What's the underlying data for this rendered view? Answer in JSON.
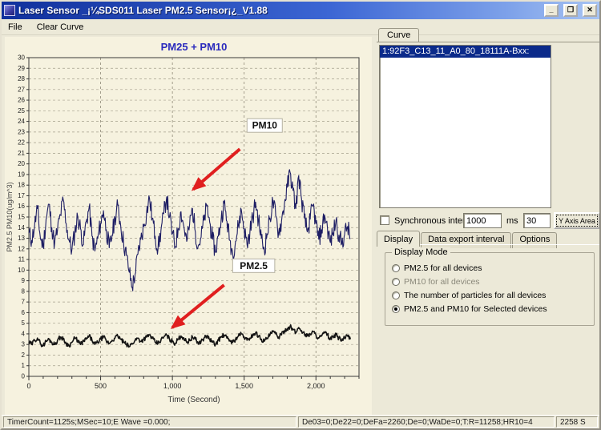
{
  "window": {
    "title": "Laser Sensor _¡¼SDS011 Laser PM2.5 Sensor¡¿_V1.88",
    "minimize_glyph": "_",
    "restore_glyph": "❐",
    "close_glyph": "✕"
  },
  "menu": {
    "items": [
      "File",
      "Clear Curve"
    ]
  },
  "right_panel": {
    "curve_tab_label": "Curve",
    "device_list": [
      "1:92F3_C13_11_A0_80_18111A-Bxx:"
    ],
    "sync": {
      "checkbox_label": "Synchronous interval",
      "interval_value": "1000",
      "unit": "ms",
      "y_axis_value": "30",
      "button_label": "Y Axis Area"
    },
    "tabs": [
      "Display",
      "Data export interval",
      "Options"
    ],
    "display_mode": {
      "title": "Display Mode",
      "options": [
        {
          "label": "PM2.5 for all devices",
          "selected": false,
          "dim": false
        },
        {
          "label": "PM10 for all devices",
          "selected": false,
          "dim": true
        },
        {
          "label": "The number of particles for all devices",
          "selected": false,
          "dim": false
        },
        {
          "label": "PM2.5 and PM10 for Selected devices",
          "selected": true,
          "dim": false
        }
      ]
    }
  },
  "status_bar": {
    "panel1": "TimerCount=1125s;MSec=10;E Wave =0.000;",
    "panel2": "De03=0;De22=0;DeFa=2260;De=0;WaDe=0;T:R=11258;HR10=4",
    "panel3": "2258 S"
  },
  "chart_data": {
    "type": "line",
    "title": "PM25 + PM10",
    "xlabel": "Time (Second)",
    "ylabel": "PM2.5 PM10(ug/m^3)",
    "xlim": [
      0,
      2300
    ],
    "ylim": [
      0,
      30
    ],
    "y_tick_step": 1,
    "grid": true,
    "title_color": "#2b2bbd",
    "xticks": [
      {
        "value": 0,
        "label": "0"
      },
      {
        "value": 500,
        "label": "500"
      },
      {
        "value": 1000,
        "label": "1,000"
      },
      {
        "value": 1500,
        "label": "1,500"
      },
      {
        "value": 2000,
        "label": "2,000"
      }
    ],
    "x": {
      "start": 0,
      "step": 20
    },
    "series": [
      {
        "name": "PM10",
        "color": "#1e1e64",
        "width": 1.1,
        "noise": 0.9,
        "seed": 11,
        "values": [
          13.5,
          12.8,
          14.2,
          15.8,
          13.1,
          12.2,
          14.8,
          16.2,
          14.0,
          12.5,
          13.8,
          15.2,
          16.6,
          14.4,
          12.8,
          11.9,
          13.5,
          15.1,
          13.9,
          12.4,
          14.6,
          15.9,
          13.2,
          11.8,
          13.0,
          14.4,
          15.6,
          13.8,
          12.1,
          13.3,
          14.9,
          16.1,
          14.2,
          12.6,
          11.4,
          9.8,
          8.4,
          9.6,
          11.5,
          12.9,
          14.1,
          15.4,
          16.8,
          14.9,
          13.2,
          12.0,
          13.7,
          15.3,
          16.9,
          15.0,
          13.4,
          12.2,
          13.9,
          15.5,
          14.1,
          12.7,
          14.3,
          15.8,
          13.6,
          12.3,
          13.1,
          14.7,
          16.0,
          14.5,
          12.9,
          11.7,
          13.2,
          14.8,
          16.3,
          14.6,
          12.8,
          11.6,
          12.7,
          14.2,
          15.7,
          13.9,
          12.4,
          13.6,
          15.0,
          16.4,
          14.7,
          13.0,
          11.9,
          13.4,
          14.9,
          16.5,
          15.1,
          13.5,
          14.6,
          16.2,
          17.8,
          19.2,
          17.5,
          15.8,
          18.9,
          16.7,
          14.9,
          13.6,
          14.8,
          16.1,
          14.4,
          12.9,
          13.8,
          15.2,
          14.0,
          12.6,
          13.5,
          14.7,
          13.3,
          12.5,
          13.4,
          14.1,
          13.0
        ]
      },
      {
        "name": "PM2.5",
        "color": "#141414",
        "width": 1.6,
        "noise": 0.22,
        "seed": 29,
        "values": [
          3.2,
          3.0,
          3.4,
          3.6,
          3.1,
          2.9,
          3.3,
          3.5,
          3.2,
          3.0,
          3.4,
          3.7,
          3.5,
          3.1,
          2.9,
          3.2,
          3.6,
          3.4,
          3.0,
          3.3,
          3.5,
          3.8,
          3.4,
          3.0,
          3.2,
          3.5,
          3.7,
          3.3,
          3.1,
          3.4,
          3.6,
          3.8,
          3.5,
          3.2,
          3.0,
          2.8,
          3.1,
          3.4,
          3.6,
          3.3,
          3.5,
          3.7,
          3.9,
          3.6,
          3.2,
          3.1,
          3.4,
          3.7,
          3.9,
          3.5,
          3.3,
          3.1,
          3.5,
          3.8,
          3.6,
          3.2,
          3.4,
          3.7,
          3.5,
          3.1,
          3.3,
          3.6,
          3.8,
          3.5,
          3.2,
          3.0,
          3.4,
          3.7,
          3.9,
          3.6,
          3.4,
          3.2,
          3.5,
          3.8,
          4.0,
          3.7,
          3.4,
          3.6,
          3.9,
          4.1,
          3.8,
          3.5,
          3.3,
          3.6,
          3.9,
          4.2,
          4.0,
          3.7,
          3.9,
          4.3,
          4.5,
          4.7,
          4.4,
          4.1,
          4.6,
          4.3,
          4.0,
          3.8,
          4.0,
          4.2,
          3.9,
          3.6,
          3.8,
          4.1,
          3.9,
          3.5,
          3.7,
          3.9,
          3.6,
          3.4,
          3.6,
          3.8,
          3.5
        ]
      }
    ],
    "annotations": [
      {
        "label": "PM10",
        "label_x": 1520,
        "label_y": 23.2,
        "tail_x": 1470,
        "tail_y": 21.4,
        "tip_x": 1145,
        "tip_y": 17.6,
        "arrow_color": "#e01f1f"
      },
      {
        "label": "PM2.5",
        "label_x": 1420,
        "label_y": 10.0,
        "tail_x": 1360,
        "tail_y": 8.6,
        "tip_x": 1000,
        "tip_y": 4.6,
        "arrow_color": "#e01f1f"
      }
    ]
  }
}
